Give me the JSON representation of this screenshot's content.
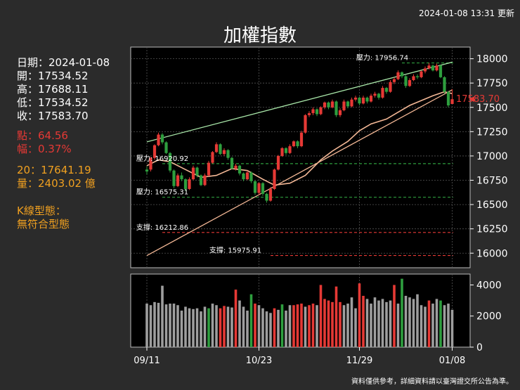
{
  "header": {
    "timestamp": "2024-01-08 13:31 更新",
    "title": "加權指數",
    "footer": "資料僅供參考，詳細資料請以臺灣證交所公告為準。"
  },
  "info": {
    "date": "日期：2024-01-08",
    "open": "開：17534.52",
    "high": "高：17688.11",
    "low": "低：17534.52",
    "close": "收：17583.70",
    "change_points": "點：64.56",
    "change_pct": "幅：0.37%",
    "ma20": "20：17641.19",
    "volume": "量：2403.02 億",
    "pattern_label": "K線型態：",
    "pattern_value": "無符合型態"
  },
  "colors": {
    "up": "#e53935",
    "down": "#2e9e3e",
    "volume_neutral": "#9e9e9e",
    "ma20": "#f4b896",
    "resistance_trend": "#a8e6a8",
    "support_trend": "#f4b896",
    "resistance_line": "#2e9e3e",
    "support_line": "#e53935"
  },
  "chart_data": {
    "type": "candlestick",
    "x_tick_labels": [
      "09/11",
      "10/23",
      "11/29",
      "01/08"
    ],
    "x_tick_index": [
      0,
      29,
      55,
      79
    ],
    "price_axis": {
      "ylim": [
        15850,
        18120
      ],
      "ticks": [
        16000,
        16250,
        16500,
        16750,
        17000,
        17250,
        17500,
        17750,
        18000
      ]
    },
    "volume_axis": {
      "ylim": [
        0,
        4700
      ],
      "ticks": [
        0,
        2000,
        4000
      ]
    },
    "last_price_label": "17583.70",
    "levels": [
      {
        "label": "壓力: 17956.74",
        "value": 17956.74,
        "type": "resistance",
        "start_index": 66
      },
      {
        "label": "壓力: 16920.92",
        "value": 16920.92,
        "type": "resistance",
        "start_index": 4
      },
      {
        "label": "壓力: 16575.31",
        "value": 16575.31,
        "type": "resistance",
        "start_index": 4
      },
      {
        "label": "支撐: 16212.86",
        "value": 16212.86,
        "type": "support",
        "start_index": 4
      },
      {
        "label": "支撐: 15975.91",
        "value": 15975.91,
        "type": "support",
        "start_index": 32
      }
    ],
    "resistance_trend": [
      [
        0,
        17145
      ],
      [
        79,
        17965
      ]
    ],
    "support_trend": [
      [
        0,
        15975
      ],
      [
        79,
        17680
      ]
    ],
    "candles": [
      [
        16840,
        16860,
        16890,
        16810,
        "down"
      ],
      [
        16860,
        16980,
        16990,
        16840,
        "up"
      ],
      [
        16980,
        17110,
        17120,
        16960,
        "up"
      ],
      [
        17110,
        17220,
        17240,
        17100,
        "up"
      ],
      [
        17220,
        17140,
        17235,
        17120,
        "down"
      ],
      [
        17140,
        17030,
        17150,
        17020,
        "down"
      ],
      [
        17030,
        16850,
        17040,
        16830,
        "down"
      ],
      [
        16850,
        16690,
        16860,
        16670,
        "down"
      ],
      [
        16690,
        16800,
        16820,
        16680,
        "up"
      ],
      [
        16800,
        16760,
        16830,
        16740,
        "down"
      ],
      [
        16760,
        16660,
        16770,
        16640,
        "down"
      ],
      [
        16660,
        16760,
        16780,
        16650,
        "up"
      ],
      [
        16760,
        16880,
        16900,
        16750,
        "up"
      ],
      [
        16880,
        16800,
        16890,
        16780,
        "down"
      ],
      [
        16800,
        16700,
        16810,
        16690,
        "down"
      ],
      [
        16700,
        16800,
        16820,
        16690,
        "up"
      ],
      [
        16800,
        16930,
        16950,
        16790,
        "up"
      ],
      [
        16930,
        17040,
        17050,
        16920,
        "up"
      ],
      [
        17040,
        17120,
        17140,
        17030,
        "up"
      ],
      [
        17120,
        17020,
        17130,
        17010,
        "down"
      ],
      [
        17020,
        17060,
        17080,
        17000,
        "up"
      ],
      [
        17060,
        16980,
        17070,
        16960,
        "down"
      ],
      [
        16980,
        16870,
        16990,
        16860,
        "down"
      ],
      [
        16870,
        16900,
        16920,
        16850,
        "up"
      ],
      [
        16900,
        16820,
        16910,
        16800,
        "down"
      ],
      [
        16820,
        16760,
        16830,
        16740,
        "down"
      ],
      [
        16760,
        16830,
        16850,
        16750,
        "up"
      ],
      [
        16830,
        16740,
        16840,
        16720,
        "down"
      ],
      [
        16740,
        16620,
        16750,
        16600,
        "down"
      ],
      [
        16620,
        16720,
        16730,
        16600,
        "up"
      ],
      [
        16720,
        16610,
        16730,
        16590,
        "down"
      ],
      [
        16610,
        16540,
        16620,
        16520,
        "down"
      ],
      [
        16540,
        16660,
        16680,
        16530,
        "up"
      ],
      [
        16660,
        16860,
        16870,
        16650,
        "up"
      ],
      [
        16860,
        17000,
        17010,
        16850,
        "up"
      ],
      [
        17000,
        17080,
        17090,
        16990,
        "up"
      ],
      [
        17080,
        17030,
        17090,
        17010,
        "down"
      ],
      [
        17030,
        17100,
        17120,
        17020,
        "up"
      ],
      [
        17100,
        17150,
        17160,
        17090,
        "up"
      ],
      [
        17150,
        17100,
        17160,
        17080,
        "down"
      ],
      [
        17100,
        17240,
        17260,
        17090,
        "up"
      ],
      [
        17240,
        17420,
        17430,
        17230,
        "up"
      ],
      [
        17420,
        17440,
        17460,
        17400,
        "up"
      ],
      [
        17440,
        17480,
        17500,
        17420,
        "up"
      ],
      [
        17480,
        17430,
        17490,
        17410,
        "down"
      ],
      [
        17430,
        17500,
        17510,
        17420,
        "up"
      ],
      [
        17500,
        17550,
        17560,
        17480,
        "up"
      ],
      [
        17550,
        17500,
        17560,
        17480,
        "down"
      ],
      [
        17500,
        17560,
        17580,
        17490,
        "up"
      ],
      [
        17560,
        17420,
        17570,
        17400,
        "down"
      ],
      [
        17420,
        17470,
        17490,
        17400,
        "up"
      ],
      [
        17470,
        17560,
        17580,
        17460,
        "up"
      ],
      [
        17560,
        17510,
        17570,
        17490,
        "down"
      ],
      [
        17510,
        17580,
        17600,
        17500,
        "up"
      ],
      [
        17580,
        17600,
        17620,
        17560,
        "up"
      ],
      [
        17600,
        17540,
        17610,
        17520,
        "down"
      ],
      [
        17540,
        17600,
        17620,
        17530,
        "up"
      ],
      [
        17600,
        17560,
        17610,
        17540,
        "down"
      ],
      [
        17560,
        17620,
        17640,
        17550,
        "up"
      ],
      [
        17620,
        17640,
        17660,
        17600,
        "up"
      ],
      [
        17640,
        17600,
        17650,
        17580,
        "down"
      ],
      [
        17600,
        17700,
        17720,
        17590,
        "up"
      ],
      [
        17700,
        17660,
        17710,
        17640,
        "down"
      ],
      [
        17660,
        17760,
        17780,
        17650,
        "up"
      ],
      [
        17760,
        17790,
        17810,
        17740,
        "up"
      ],
      [
        17790,
        17860,
        17880,
        17780,
        "up"
      ],
      [
        17860,
        17820,
        17870,
        17800,
        "down"
      ],
      [
        17820,
        17720,
        17830,
        17700,
        "down"
      ],
      [
        17720,
        17780,
        17800,
        17710,
        "up"
      ],
      [
        17780,
        17820,
        17840,
        17770,
        "up"
      ],
      [
        17820,
        17810,
        17840,
        17790,
        "down"
      ],
      [
        17810,
        17870,
        17880,
        17800,
        "up"
      ],
      [
        17870,
        17900,
        17920,
        17850,
        "up"
      ],
      [
        17900,
        17930,
        17957,
        17890,
        "up"
      ],
      [
        17930,
        17880,
        17940,
        17870,
        "down"
      ],
      [
        17880,
        17930,
        17950,
        17870,
        "up"
      ],
      [
        17930,
        17810,
        17940,
        17800,
        "down"
      ],
      [
        17810,
        17660,
        17820,
        17640,
        "down"
      ],
      [
        17660,
        17520,
        17670,
        17500,
        "down"
      ],
      [
        17534.52,
        17583.7,
        17688.11,
        17534.52,
        "up"
      ]
    ],
    "ma20": [
      [
        0,
        16900
      ],
      [
        3,
        16960
      ],
      [
        6,
        16940
      ],
      [
        10,
        16860
      ],
      [
        14,
        16780
      ],
      [
        18,
        16800
      ],
      [
        22,
        16870
      ],
      [
        26,
        16850
      ],
      [
        30,
        16760
      ],
      [
        33,
        16700
      ],
      [
        37,
        16720
      ],
      [
        41,
        16800
      ],
      [
        45,
        16960
      ],
      [
        48,
        17050
      ],
      [
        52,
        17150
      ],
      [
        55,
        17260
      ],
      [
        58,
        17330
      ],
      [
        62,
        17380
      ],
      [
        65,
        17450
      ],
      [
        68,
        17520
      ],
      [
        71,
        17570
      ],
      [
        74,
        17620
      ],
      [
        77,
        17660
      ],
      [
        79,
        17641.19
      ]
    ],
    "volumes": [
      [
        2800,
        "neutral"
      ],
      [
        2700,
        "neutral"
      ],
      [
        2900,
        "neutral"
      ],
      [
        2850,
        "neutral"
      ],
      [
        3950,
        "neutral"
      ],
      [
        2750,
        "neutral"
      ],
      [
        2800,
        "neutral"
      ],
      [
        2800,
        "neutral"
      ],
      [
        2700,
        "neutral"
      ],
      [
        2350,
        "neutral"
      ],
      [
        2600,
        "neutral"
      ],
      [
        2500,
        "neutral"
      ],
      [
        2450,
        "neutral"
      ],
      [
        2500,
        "neutral"
      ],
      [
        2300,
        "neutral"
      ],
      [
        2600,
        "neutral"
      ],
      [
        2500,
        "down"
      ],
      [
        2800,
        "neutral"
      ],
      [
        2700,
        "neutral"
      ],
      [
        2500,
        "up"
      ],
      [
        2650,
        "up"
      ],
      [
        2600,
        "neutral"
      ],
      [
        2550,
        "neutral"
      ],
      [
        3700,
        "up"
      ],
      [
        3000,
        "neutral"
      ],
      [
        2600,
        "neutral"
      ],
      [
        2350,
        "neutral"
      ],
      [
        3400,
        "down"
      ],
      [
        2800,
        "up"
      ],
      [
        2700,
        "neutral"
      ],
      [
        2500,
        "neutral"
      ],
      [
        2300,
        "neutral"
      ],
      [
        2200,
        "neutral"
      ],
      [
        2500,
        "up"
      ],
      [
        2400,
        "neutral"
      ],
      [
        2750,
        "down"
      ],
      [
        2350,
        "neutral"
      ],
      [
        2700,
        "neutral"
      ],
      [
        2700,
        "up"
      ],
      [
        2750,
        "up"
      ],
      [
        2800,
        "up"
      ],
      [
        2600,
        "neutral"
      ],
      [
        2700,
        "up"
      ],
      [
        2800,
        "up"
      ],
      [
        2700,
        "neutral"
      ],
      [
        4000,
        "up"
      ],
      [
        3100,
        "up"
      ],
      [
        3000,
        "up"
      ],
      [
        2900,
        "up"
      ],
      [
        3900,
        "up"
      ],
      [
        2900,
        "up"
      ],
      [
        2700,
        "neutral"
      ],
      [
        2800,
        "neutral"
      ],
      [
        3200,
        "neutral"
      ],
      [
        2500,
        "neutral"
      ],
      [
        4100,
        "up"
      ],
      [
        3300,
        "up"
      ],
      [
        3100,
        "neutral"
      ],
      [
        2800,
        "neutral"
      ],
      [
        3200,
        "neutral"
      ],
      [
        3000,
        "neutral"
      ],
      [
        3100,
        "neutral"
      ],
      [
        2900,
        "neutral"
      ],
      [
        3000,
        "neutral"
      ],
      [
        4000,
        "up"
      ],
      [
        2800,
        "neutral"
      ],
      [
        4400,
        "down"
      ],
      [
        3300,
        "neutral"
      ],
      [
        3200,
        "neutral"
      ],
      [
        3100,
        "neutral"
      ],
      [
        3400,
        "neutral"
      ],
      [
        2700,
        "neutral"
      ],
      [
        2600,
        "neutral"
      ],
      [
        3000,
        "up"
      ],
      [
        2800,
        "neutral"
      ],
      [
        3100,
        "neutral"
      ],
      [
        3000,
        "down"
      ],
      [
        2700,
        "neutral"
      ],
      [
        2800,
        "neutral"
      ],
      [
        2403.02,
        "neutral"
      ]
    ]
  }
}
